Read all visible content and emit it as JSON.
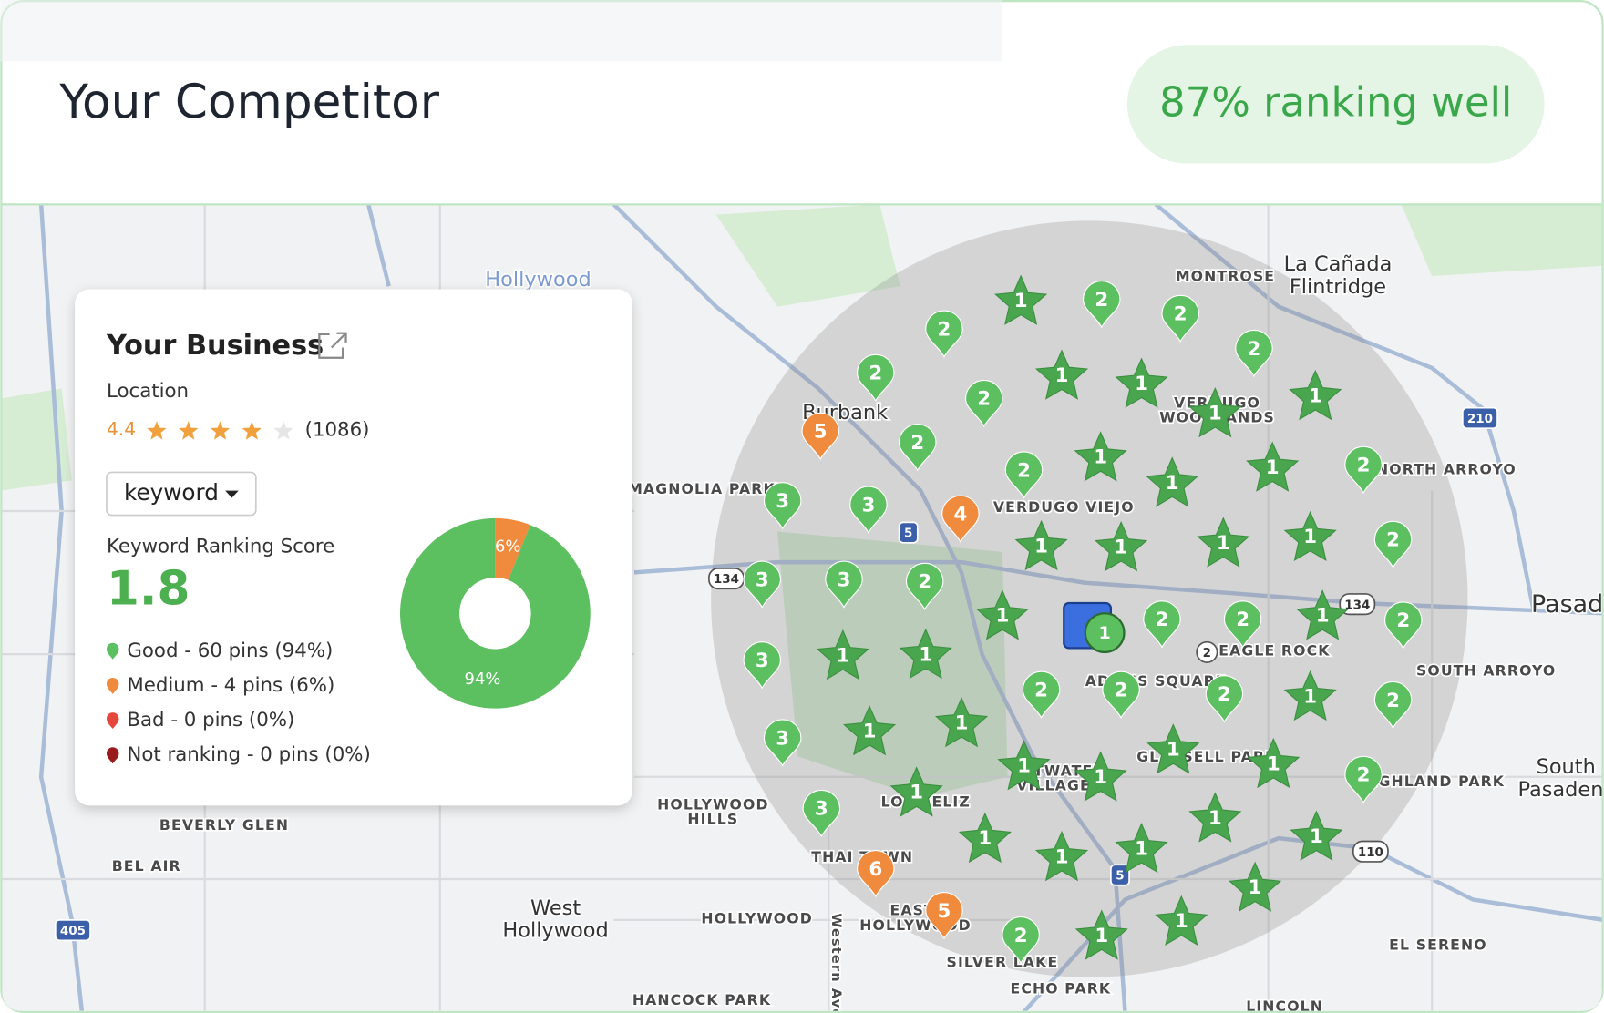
{
  "header": {
    "title": "Your Competitor",
    "badge": "87% ranking well"
  },
  "card": {
    "name": "Your Business",
    "subtitle": "Location",
    "rating": 4.4,
    "reviews": "(1086)",
    "dropdown": "keyword",
    "score_label": "Keyword Ranking Score",
    "score": "1.8",
    "legend": [
      {
        "text": "Good - 60 pins (94%)",
        "color": "#5cbf60"
      },
      {
        "text": "Medium - 4 pins (6%)",
        "color": "#f08a3c"
      },
      {
        "text": "Bad - 0 pins (0%)",
        "color": "#e5483b"
      },
      {
        "text": "Not ranking - 0 pins (0%)",
        "color": "#9b1c1c"
      }
    ],
    "donut": {
      "values": [
        6,
        94
      ],
      "value_labels": [
        "6%",
        "94%"
      ],
      "colors": [
        "#f08a3c",
        "#5cbf60"
      ]
    }
  },
  "map": {
    "places": [
      "Hollywood",
      "MONTROSE",
      "La Cañada",
      "Flintridge",
      "Burbank",
      "MAGNOLIA PARK",
      "VERDUGO VIEJO",
      "VERDUGO",
      "WOODLANDS",
      "NORTH ARROYO",
      "Pasadena",
      "EAGLE ROCK",
      "SOUTH ARROYO",
      "ADAMS SQUARE",
      "GLASSELL PARK",
      "ATWATER",
      "VILLAGE",
      "HIGHLAND PARK",
      "South",
      "Pasadena",
      "HOLLYWOOD",
      "HILLS",
      "BEVERLY GLEN",
      "BEL AIR",
      "LOS FELIZ",
      "THAI TOWN",
      "West",
      "Hollywood",
      "HOLLYWOOD",
      "EAST",
      "HOLLYWOOD",
      "SILVER LAKE",
      "ECHO PARK",
      "HANCOCK PARK",
      "EL SERENO",
      "LINCOLN",
      "Western Ave"
    ],
    "shields": [
      "134",
      "5",
      "134",
      "2",
      "210",
      "110",
      "5",
      "405"
    ],
    "pins": [
      1,
      1,
      1,
      1,
      1,
      1,
      1,
      1,
      1,
      1,
      1,
      1,
      1,
      1,
      1,
      1,
      1,
      1,
      1,
      1,
      1,
      1,
      1,
      1,
      1,
      1,
      1,
      1,
      1,
      1,
      1,
      1,
      2,
      2,
      2,
      2,
      2,
      2,
      2,
      2,
      2,
      2,
      2,
      2,
      2,
      2,
      2,
      2,
      2,
      2,
      2,
      2,
      3,
      3,
      3,
      3,
      3,
      3,
      3,
      5,
      4,
      6,
      5
    ],
    "business_rank": 1
  }
}
